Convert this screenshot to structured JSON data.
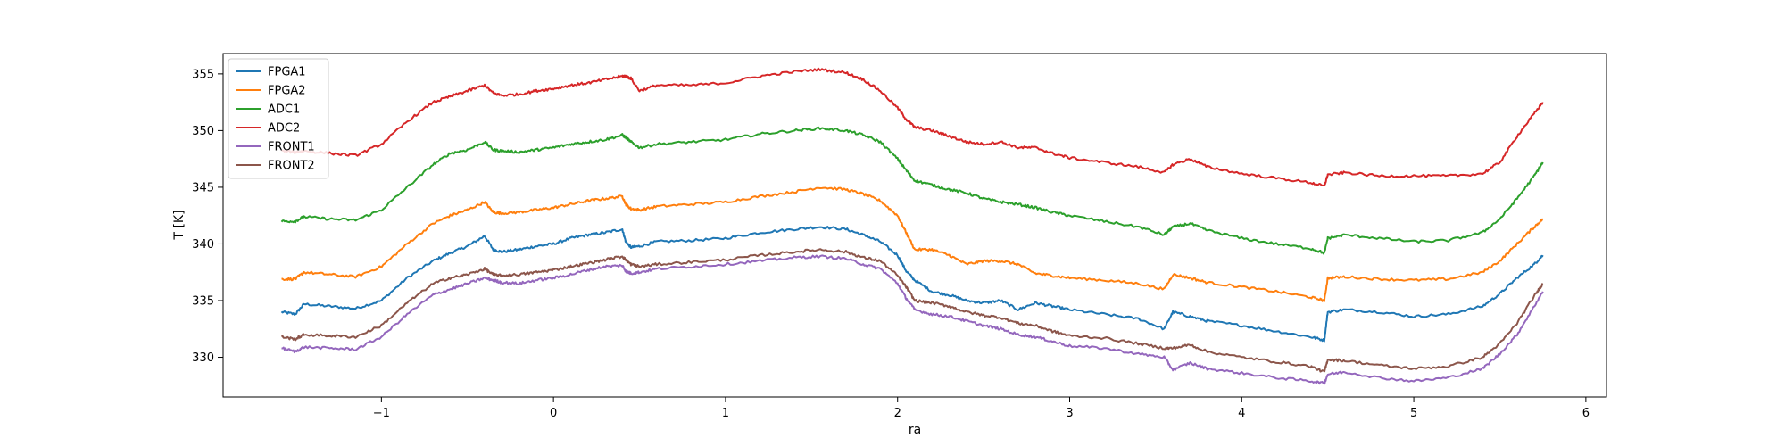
{
  "chart_data": {
    "type": "line",
    "title": "",
    "xlabel": "ra",
    "ylabel": "T [K]",
    "xlim": [
      -1.92,
      6.12
    ],
    "ylim": [
      326.5,
      356.8
    ],
    "xticks": [
      -1,
      0,
      1,
      2,
      3,
      4,
      5,
      6
    ],
    "yticks": [
      330,
      335,
      340,
      345,
      350,
      355
    ],
    "grid": false,
    "legend_position": "top-left",
    "series": [
      {
        "name": "FPGA1",
        "color": "#1f77b4",
        "x": [
          -1.58,
          -1.5,
          -1.45,
          -1.3,
          -1.15,
          -1.0,
          -0.85,
          -0.7,
          -0.6,
          -0.5,
          -0.4,
          -0.35,
          -0.3,
          -0.2,
          -0.1,
          0,
          0.1,
          0.2,
          0.3,
          0.4,
          0.42,
          0.45,
          0.5,
          0.6,
          0.8,
          1.0,
          1.2,
          1.4,
          1.55,
          1.7,
          1.8,
          1.9,
          2.0,
          2.05,
          2.1,
          2.2,
          2.3,
          2.4,
          2.5,
          2.6,
          2.7,
          2.8,
          2.9,
          3.0,
          3.2,
          3.4,
          3.55,
          3.6,
          3.7,
          3.8,
          4.0,
          4.2,
          4.4,
          4.48,
          4.5,
          4.6,
          4.8,
          5.0,
          5.2,
          5.4,
          5.5,
          5.6,
          5.7,
          5.75
        ],
        "y": [
          334.0,
          333.8,
          334.7,
          334.5,
          334.3,
          335.0,
          337.0,
          338.5,
          339.2,
          339.8,
          340.7,
          339.5,
          339.3,
          339.5,
          339.8,
          340.0,
          340.5,
          340.8,
          341.0,
          341.3,
          340.2,
          339.7,
          339.8,
          340.2,
          340.3,
          340.5,
          341.0,
          341.3,
          341.5,
          341.3,
          340.8,
          340.2,
          339.0,
          337.6,
          336.8,
          335.8,
          335.5,
          335.0,
          334.8,
          335.0,
          334.2,
          334.8,
          334.5,
          334.2,
          333.8,
          333.4,
          332.5,
          334.0,
          333.6,
          333.2,
          332.8,
          332.3,
          331.8,
          331.5,
          334.0,
          334.2,
          334.0,
          333.6,
          333.8,
          334.5,
          335.6,
          337.0,
          338.2,
          339.0
        ]
      },
      {
        "name": "FPGA2",
        "color": "#ff7f0e",
        "x": [
          -1.58,
          -1.5,
          -1.45,
          -1.3,
          -1.15,
          -1.0,
          -0.85,
          -0.7,
          -0.6,
          -0.5,
          -0.4,
          -0.35,
          -0.3,
          -0.2,
          -0.1,
          0,
          0.1,
          0.2,
          0.3,
          0.4,
          0.42,
          0.45,
          0.5,
          0.6,
          0.8,
          1.0,
          1.2,
          1.4,
          1.55,
          1.7,
          1.8,
          1.9,
          2.0,
          2.05,
          2.1,
          2.2,
          2.3,
          2.4,
          2.5,
          2.6,
          2.7,
          2.8,
          2.9,
          3.0,
          3.2,
          3.4,
          3.55,
          3.6,
          3.7,
          3.8,
          4.0,
          4.2,
          4.4,
          4.48,
          4.5,
          4.6,
          4.8,
          5.0,
          5.2,
          5.4,
          5.5,
          5.6,
          5.7,
          5.75
        ],
        "y": [
          336.9,
          336.9,
          337.5,
          337.3,
          337.1,
          338.0,
          340.0,
          341.8,
          342.5,
          343.0,
          343.7,
          342.8,
          342.7,
          342.8,
          343.0,
          343.2,
          343.5,
          343.8,
          344.0,
          344.2,
          343.5,
          343.1,
          343.0,
          343.3,
          343.5,
          343.7,
          344.2,
          344.6,
          345.0,
          344.8,
          344.4,
          343.8,
          342.5,
          341.0,
          339.5,
          339.5,
          339.0,
          338.2,
          338.5,
          338.5,
          338.2,
          337.4,
          337.2,
          337.0,
          336.8,
          336.5,
          336.0,
          337.3,
          337.0,
          336.6,
          336.2,
          335.8,
          335.3,
          335.0,
          337.0,
          337.1,
          336.9,
          336.8,
          336.9,
          337.5,
          338.5,
          340.0,
          341.5,
          342.2
        ]
      },
      {
        "name": "ADC1",
        "color": "#2ca02c",
        "x": [
          -1.58,
          -1.5,
          -1.45,
          -1.3,
          -1.15,
          -1.0,
          -0.85,
          -0.7,
          -0.6,
          -0.5,
          -0.4,
          -0.35,
          -0.3,
          -0.2,
          -0.1,
          0,
          0.1,
          0.2,
          0.3,
          0.4,
          0.42,
          0.45,
          0.5,
          0.6,
          0.8,
          1.0,
          1.2,
          1.4,
          1.55,
          1.7,
          1.8,
          1.9,
          2.0,
          2.05,
          2.1,
          2.2,
          2.3,
          2.4,
          2.5,
          2.6,
          2.7,
          2.8,
          2.9,
          3.0,
          3.2,
          3.4,
          3.55,
          3.6,
          3.7,
          3.8,
          4.0,
          4.2,
          4.4,
          4.48,
          4.5,
          4.6,
          4.8,
          5.0,
          5.2,
          5.4,
          5.5,
          5.6,
          5.7,
          5.75
        ],
        "y": [
          342.0,
          342.0,
          342.4,
          342.2,
          342.1,
          343.0,
          345.0,
          347.0,
          348.0,
          348.3,
          349.0,
          348.3,
          348.2,
          348.1,
          348.3,
          348.5,
          348.8,
          349.0,
          349.2,
          349.6,
          349.4,
          349.0,
          348.5,
          348.8,
          349.0,
          349.2,
          349.7,
          350.0,
          350.2,
          350.0,
          349.6,
          349.0,
          347.5,
          346.5,
          345.6,
          345.2,
          344.8,
          344.5,
          344.0,
          343.7,
          343.5,
          343.2,
          342.8,
          342.5,
          342.0,
          341.5,
          340.8,
          341.5,
          341.8,
          341.2,
          340.5,
          340.0,
          339.6,
          339.2,
          340.5,
          340.8,
          340.5,
          340.2,
          340.3,
          341.0,
          342.2,
          344.0,
          346.0,
          347.2
        ]
      },
      {
        "name": "ADC2",
        "color": "#d62728",
        "x": [
          -1.58,
          -1.5,
          -1.45,
          -1.3,
          -1.15,
          -1.0,
          -0.85,
          -0.7,
          -0.6,
          -0.5,
          -0.4,
          -0.35,
          -0.3,
          -0.2,
          -0.1,
          0,
          0.1,
          0.2,
          0.3,
          0.4,
          0.42,
          0.45,
          0.5,
          0.6,
          0.8,
          1.0,
          1.2,
          1.4,
          1.55,
          1.7,
          1.8,
          1.9,
          2.0,
          2.05,
          2.1,
          2.2,
          2.3,
          2.4,
          2.5,
          2.6,
          2.7,
          2.8,
          2.9,
          3.0,
          3.2,
          3.4,
          3.55,
          3.6,
          3.7,
          3.8,
          4.0,
          4.2,
          4.4,
          4.48,
          4.5,
          4.6,
          4.8,
          5.0,
          5.2,
          5.4,
          5.5,
          5.6,
          5.7,
          5.75
        ],
        "y": [
          348.2,
          348.1,
          348.2,
          348.0,
          347.8,
          348.8,
          350.8,
          352.5,
          353.0,
          353.5,
          354.0,
          353.3,
          353.1,
          353.2,
          353.5,
          353.7,
          354.0,
          354.2,
          354.5,
          354.8,
          354.8,
          354.6,
          353.5,
          354.0,
          354.0,
          354.2,
          354.8,
          355.2,
          355.4,
          355.1,
          354.5,
          353.5,
          352.0,
          351.0,
          350.3,
          350.0,
          349.5,
          349.0,
          348.8,
          349.0,
          348.5,
          348.5,
          348.0,
          347.6,
          347.2,
          346.8,
          346.3,
          347.0,
          347.5,
          346.8,
          346.2,
          345.8,
          345.4,
          345.1,
          346.1,
          346.3,
          346.0,
          346.0,
          346.0,
          346.2,
          347.2,
          349.5,
          351.5,
          352.5
        ]
      },
      {
        "name": "FRONT1",
        "color": "#9467bd",
        "x": [
          -1.58,
          -1.5,
          -1.45,
          -1.3,
          -1.15,
          -1.0,
          -0.85,
          -0.7,
          -0.6,
          -0.5,
          -0.4,
          -0.35,
          -0.3,
          -0.2,
          -0.1,
          0,
          0.1,
          0.2,
          0.3,
          0.4,
          0.42,
          0.45,
          0.5,
          0.6,
          0.8,
          1.0,
          1.2,
          1.4,
          1.55,
          1.7,
          1.8,
          1.9,
          2.0,
          2.05,
          2.1,
          2.2,
          2.3,
          2.4,
          2.5,
          2.6,
          2.7,
          2.8,
          2.9,
          3.0,
          3.2,
          3.4,
          3.55,
          3.6,
          3.7,
          3.8,
          4.0,
          4.2,
          4.4,
          4.48,
          4.5,
          4.6,
          4.8,
          5.0,
          5.2,
          5.4,
          5.5,
          5.6,
          5.7,
          5.75
        ],
        "y": [
          330.8,
          330.5,
          330.9,
          330.8,
          330.7,
          331.8,
          333.8,
          335.5,
          336.0,
          336.5,
          337.0,
          336.8,
          336.6,
          336.5,
          336.8,
          337.0,
          337.3,
          337.7,
          338.0,
          338.1,
          337.6,
          337.4,
          337.5,
          337.8,
          338.0,
          338.2,
          338.5,
          338.8,
          338.9,
          338.7,
          338.2,
          337.8,
          336.5,
          335.2,
          334.2,
          333.8,
          333.6,
          333.2,
          332.8,
          332.5,
          332.0,
          331.8,
          331.4,
          331.0,
          330.8,
          330.3,
          330.0,
          328.9,
          329.5,
          329.0,
          328.6,
          328.2,
          327.9,
          327.7,
          328.5,
          328.7,
          328.2,
          327.9,
          328.2,
          329.0,
          330.3,
          332.0,
          334.5,
          335.8
        ]
      },
      {
        "name": "FRONT2",
        "color": "#8c564b",
        "x": [
          -1.58,
          -1.5,
          -1.45,
          -1.3,
          -1.15,
          -1.0,
          -0.85,
          -0.7,
          -0.6,
          -0.5,
          -0.4,
          -0.35,
          -0.3,
          -0.2,
          -0.1,
          0,
          0.1,
          0.2,
          0.3,
          0.4,
          0.42,
          0.45,
          0.5,
          0.6,
          0.8,
          1.0,
          1.2,
          1.4,
          1.55,
          1.7,
          1.8,
          1.9,
          2.0,
          2.05,
          2.1,
          2.2,
          2.3,
          2.4,
          2.5,
          2.6,
          2.7,
          2.8,
          2.9,
          3.0,
          3.2,
          3.4,
          3.55,
          3.6,
          3.7,
          3.8,
          4.0,
          4.2,
          4.4,
          4.48,
          4.5,
          4.6,
          4.8,
          5.0,
          5.2,
          5.4,
          5.5,
          5.6,
          5.7,
          5.75
        ],
        "y": [
          331.8,
          331.6,
          332.0,
          331.9,
          331.8,
          332.8,
          334.8,
          336.5,
          337.0,
          337.3,
          337.8,
          337.3,
          337.2,
          337.3,
          337.5,
          337.7,
          338.0,
          338.3,
          338.6,
          338.9,
          338.6,
          338.2,
          338.0,
          338.2,
          338.4,
          338.6,
          339.0,
          339.3,
          339.5,
          339.3,
          338.8,
          338.5,
          337.2,
          336.2,
          335.0,
          334.8,
          334.5,
          334.0,
          333.7,
          333.5,
          333.0,
          332.8,
          332.3,
          331.9,
          331.7,
          331.2,
          330.8,
          330.8,
          331.1,
          330.5,
          330.0,
          329.6,
          329.2,
          328.7,
          329.8,
          329.7,
          329.3,
          329.0,
          329.2,
          330.0,
          331.2,
          333.0,
          335.4,
          336.5
        ]
      }
    ]
  }
}
